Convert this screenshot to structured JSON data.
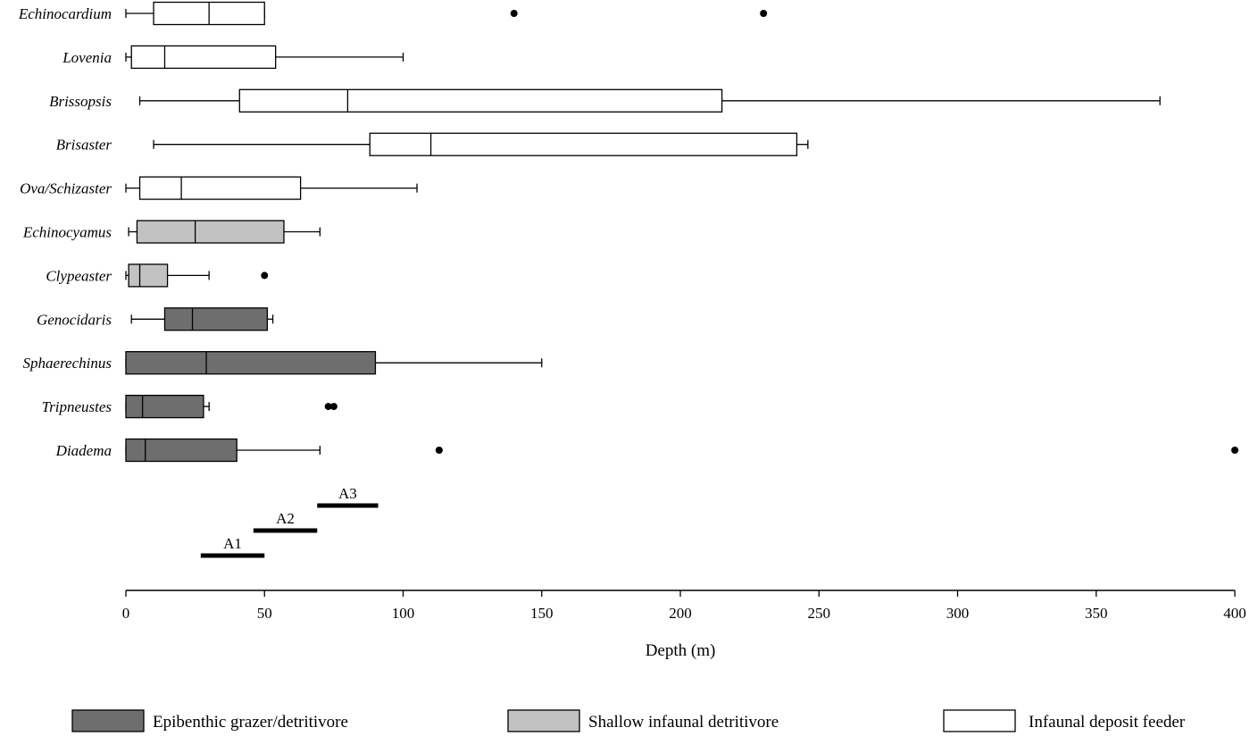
{
  "chart_data": {
    "type": "boxplot",
    "title": "",
    "xlabel": "Depth (m)",
    "ylabel": "",
    "xlim": [
      0,
      400
    ],
    "xticks": [
      0,
      50,
      100,
      150,
      200,
      250,
      300,
      350,
      400
    ],
    "xtick_labels": [
      "0",
      "50",
      "100",
      "150",
      "200",
      "250",
      "300",
      "350",
      "400"
    ],
    "grid": false,
    "colors": {
      "epibenthic": "#6e6e6e",
      "shallow": "#c2c2c2",
      "infaunal": "#ffffff",
      "stroke": "#000000"
    },
    "legend": [
      {
        "key": "epibenthic",
        "label": "Epibenthic grazer/detritivore"
      },
      {
        "key": "shallow",
        "label": "Shallow infaunal detritivore"
      },
      {
        "key": "infaunal",
        "label": "Infaunal deposit feeder"
      }
    ],
    "series": [
      {
        "name": "Echinocardium",
        "group": "infaunal",
        "whisker_low": 0,
        "q1": 10,
        "median": 30,
        "q3": 50,
        "whisker_high": 50,
        "outliers": [
          140,
          230
        ]
      },
      {
        "name": "Lovenia",
        "group": "infaunal",
        "whisker_low": 0,
        "q1": 2,
        "median": 14,
        "q3": 54,
        "whisker_high": 100,
        "outliers": []
      },
      {
        "name": "Brissopsis",
        "group": "infaunal",
        "whisker_low": 5,
        "q1": 41,
        "median": 80,
        "q3": 215,
        "whisker_high": 373,
        "outliers": []
      },
      {
        "name": "Brisaster",
        "group": "infaunal",
        "whisker_low": 10,
        "q1": 88,
        "median": 110,
        "q3": 242,
        "whisker_high": 246,
        "outliers": []
      },
      {
        "name": "Ova/Schizaster",
        "group": "infaunal",
        "whisker_low": 0,
        "q1": 5,
        "median": 20,
        "q3": 63,
        "whisker_high": 105,
        "outliers": []
      },
      {
        "name": "Echinocyamus",
        "group": "shallow",
        "whisker_low": 1,
        "q1": 4,
        "median": 25,
        "q3": 57,
        "whisker_high": 70,
        "outliers": []
      },
      {
        "name": "Clypeaster",
        "group": "shallow",
        "whisker_low": 0,
        "q1": 1,
        "median": 5,
        "q3": 15,
        "whisker_high": 30,
        "outliers": [
          50
        ]
      },
      {
        "name": "Genocidaris",
        "group": "epibenthic",
        "whisker_low": 2,
        "q1": 14,
        "median": 24,
        "q3": 51,
        "whisker_high": 53,
        "outliers": []
      },
      {
        "name": "Sphaerechinus",
        "group": "epibenthic",
        "whisker_low": 0,
        "q1": 0,
        "median": 29,
        "q3": 90,
        "whisker_high": 150,
        "outliers": []
      },
      {
        "name": "Tripneustes",
        "group": "epibenthic",
        "whisker_low": 0,
        "q1": 0,
        "median": 6,
        "q3": 28,
        "whisker_high": 30,
        "outliers": [
          73,
          75
        ]
      },
      {
        "name": "Diadema",
        "group": "epibenthic",
        "whisker_low": 0,
        "q1": 0,
        "median": 7,
        "q3": 40,
        "whisker_high": 70,
        "outliers": [
          113,
          400
        ]
      }
    ],
    "depth_ranges": [
      {
        "label": "A1",
        "start": 27,
        "end": 50
      },
      {
        "label": "A2",
        "start": 46,
        "end": 69
      },
      {
        "label": "A3",
        "start": 69,
        "end": 91
      }
    ]
  }
}
